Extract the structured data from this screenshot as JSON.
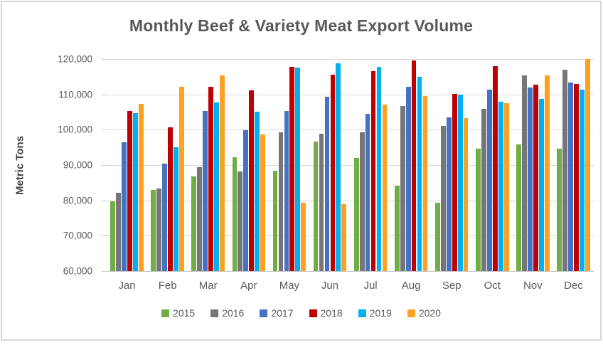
{
  "chart_data": {
    "type": "bar",
    "title": "Monthly Beef & Variety Meat Export Volume",
    "xlabel": "",
    "ylabel": "Metric Tons",
    "ylim": [
      60000,
      120000
    ],
    "ytick_step": 10000,
    "grid": true,
    "legend_position": "bottom",
    "categories": [
      "Jan",
      "Feb",
      "Mar",
      "Apr",
      "May",
      "Jun",
      "Jul",
      "Aug",
      "Sep",
      "Oct",
      "Nov",
      "Dec"
    ],
    "series": [
      {
        "name": "2015",
        "color": "#70AD47",
        "values": [
          79700,
          83000,
          86800,
          92300,
          88400,
          96600,
          92000,
          84200,
          79400,
          94600,
          95900,
          94700
        ]
      },
      {
        "name": "2016",
        "color": "#767676",
        "values": [
          82200,
          83300,
          89300,
          88200,
          99200,
          98800,
          99300,
          106800,
          101000,
          105900,
          115400,
          116900
        ]
      },
      {
        "name": "2017",
        "color": "#4472C4",
        "values": [
          96500,
          90400,
          105300,
          99900,
          105300,
          109400,
          104400,
          112100,
          103400,
          111300,
          112000,
          113300
        ]
      },
      {
        "name": "2018",
        "color": "#C00000",
        "values": [
          105400,
          100700,
          112100,
          111200,
          117700,
          115600,
          116500,
          119700,
          110100,
          117900,
          112700,
          112900
        ]
      },
      {
        "name": "2019",
        "color": "#00B0F0",
        "values": [
          104800,
          95000,
          107700,
          105200,
          117500,
          118700,
          117700,
          114900,
          110000,
          107900,
          108700,
          111300
        ]
      },
      {
        "name": "2020",
        "color": "#FFA120",
        "values": [
          107300,
          112100,
          115400,
          98700,
          79400,
          78900,
          107100,
          109600,
          103200,
          107500,
          115300,
          120100
        ]
      }
    ]
  }
}
